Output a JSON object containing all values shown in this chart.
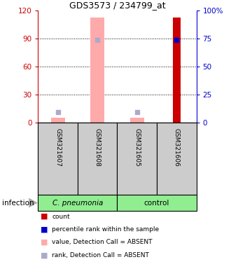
{
  "title": "GDS3573 / 234799_at",
  "samples": [
    "GSM321607",
    "GSM321608",
    "GSM321605",
    "GSM321606"
  ],
  "ylim_left": [
    0,
    120
  ],
  "ylim_right": [
    0,
    100
  ],
  "yticks_left": [
    0,
    30,
    60,
    90,
    120
  ],
  "ytick_labels_left": [
    "0",
    "30",
    "60",
    "90",
    "120"
  ],
  "yticks_right": [
    0,
    25,
    50,
    75,
    100
  ],
  "ytick_labels_right": [
    "0",
    "25",
    "50",
    "75",
    "100%"
  ],
  "count_values": [
    null,
    null,
    null,
    113
  ],
  "percentile_values": [
    null,
    null,
    null,
    74
  ],
  "absent_value_values": [
    5,
    113,
    5,
    null
  ],
  "absent_rank_values": [
    9,
    74,
    9,
    null
  ],
  "bar_width": 0.35,
  "left_axis_color": "#cc0000",
  "right_axis_color": "#0000cc",
  "count_color": "#cc0000",
  "percentile_color": "#0000cc",
  "absent_value_color": "#ffaaaa",
  "absent_rank_color": "#aaaacc",
  "sample_box_color": "#cccccc",
  "group_green": "#90ee90",
  "legend_items": [
    [
      "#cc0000",
      "count"
    ],
    [
      "#0000cc",
      "percentile rank within the sample"
    ],
    [
      "#ffaaaa",
      "value, Detection Call = ABSENT"
    ],
    [
      "#aaaacc",
      "rank, Detection Call = ABSENT"
    ]
  ]
}
